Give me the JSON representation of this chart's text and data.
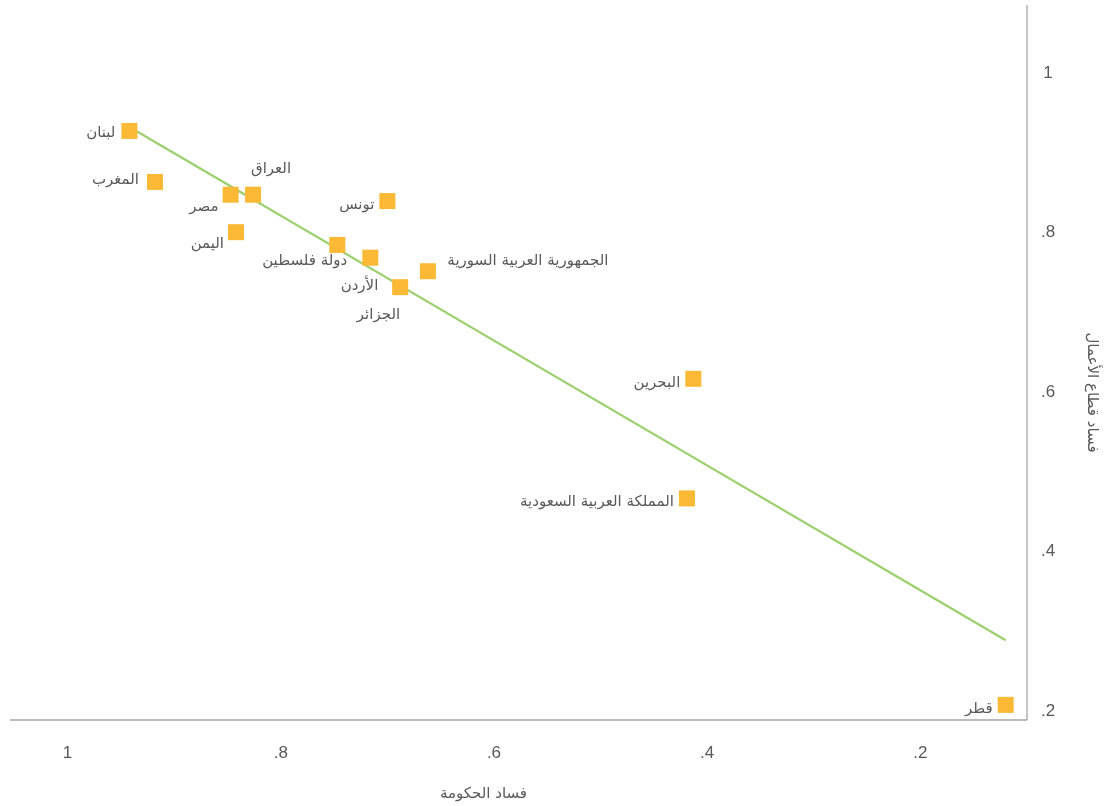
{
  "chart_data": {
    "type": "scatter",
    "xlabel": "فساد الحكومة",
    "ylabel": "فساد قطاع الأعمال",
    "xlim": [
      1.054,
      0.1
    ],
    "ylim": [
      0.187,
      1.084
    ],
    "xticks": [
      1,
      {
        "value": 0.8,
        "label": ".8"
      },
      {
        "value": 0.6,
        "label": ".6"
      },
      {
        "value": 0.4,
        "label": ".4"
      },
      {
        "value": 0.2,
        "label": ".2"
      }
    ],
    "yticks": [
      1,
      {
        "value": 0.8,
        "label": ".8"
      },
      {
        "value": 0.6,
        "label": ".6"
      },
      {
        "value": 0.4,
        "label": ".4"
      },
      {
        "value": 0.2,
        "label": ".2"
      }
    ],
    "grid": false,
    "series": [
      {
        "marker": "square",
        "color": "#fbb935",
        "x": [
          0.942,
          0.918,
          0.847,
          0.826,
          0.842,
          0.7,
          0.747,
          0.716,
          0.688,
          0.662,
          0.413,
          0.419,
          0.12
        ],
        "values": [
          0.926,
          0.862,
          0.846,
          0.846,
          0.799,
          0.838,
          0.783,
          0.767,
          0.73,
          0.75,
          0.615,
          0.465,
          0.206
        ]
      },
      {
        "type": "line",
        "marker": "none",
        "color": "#9ccf6e",
        "x": [
          0.942,
          0.12
        ],
        "values": [
          0.931,
          0.287
        ]
      }
    ],
    "annotations": [
      {
        "text": "لبنان",
        "x": 0.942,
        "y": 0.926
      },
      {
        "text": "المغرب",
        "x": 0.918,
        "y": 0.862
      },
      {
        "text": "مصر",
        "x": 0.847,
        "y": 0.846
      },
      {
        "text": "العراق",
        "x": 0.826,
        "y": 0.846
      },
      {
        "text": "اليمن",
        "x": 0.842,
        "y": 0.799
      },
      {
        "text": "تونس",
        "x": 0.7,
        "y": 0.838
      },
      {
        "text": "دولة فلسطين",
        "x": 0.747,
        "y": 0.783
      },
      {
        "text": "الأردن",
        "x": 0.716,
        "y": 0.767
      },
      {
        "text": "الجزائر",
        "x": 0.688,
        "y": 0.73
      },
      {
        "text": "الجمهورية العربية السورية",
        "x": 0.662,
        "y": 0.75
      },
      {
        "text": "البحرين",
        "x": 0.413,
        "y": 0.615
      },
      {
        "text": "المملكة العربية السعودية",
        "x": 0.419,
        "y": 0.465
      },
      {
        "text": "قطر",
        "x": 0.12,
        "y": 0.206
      }
    ]
  }
}
